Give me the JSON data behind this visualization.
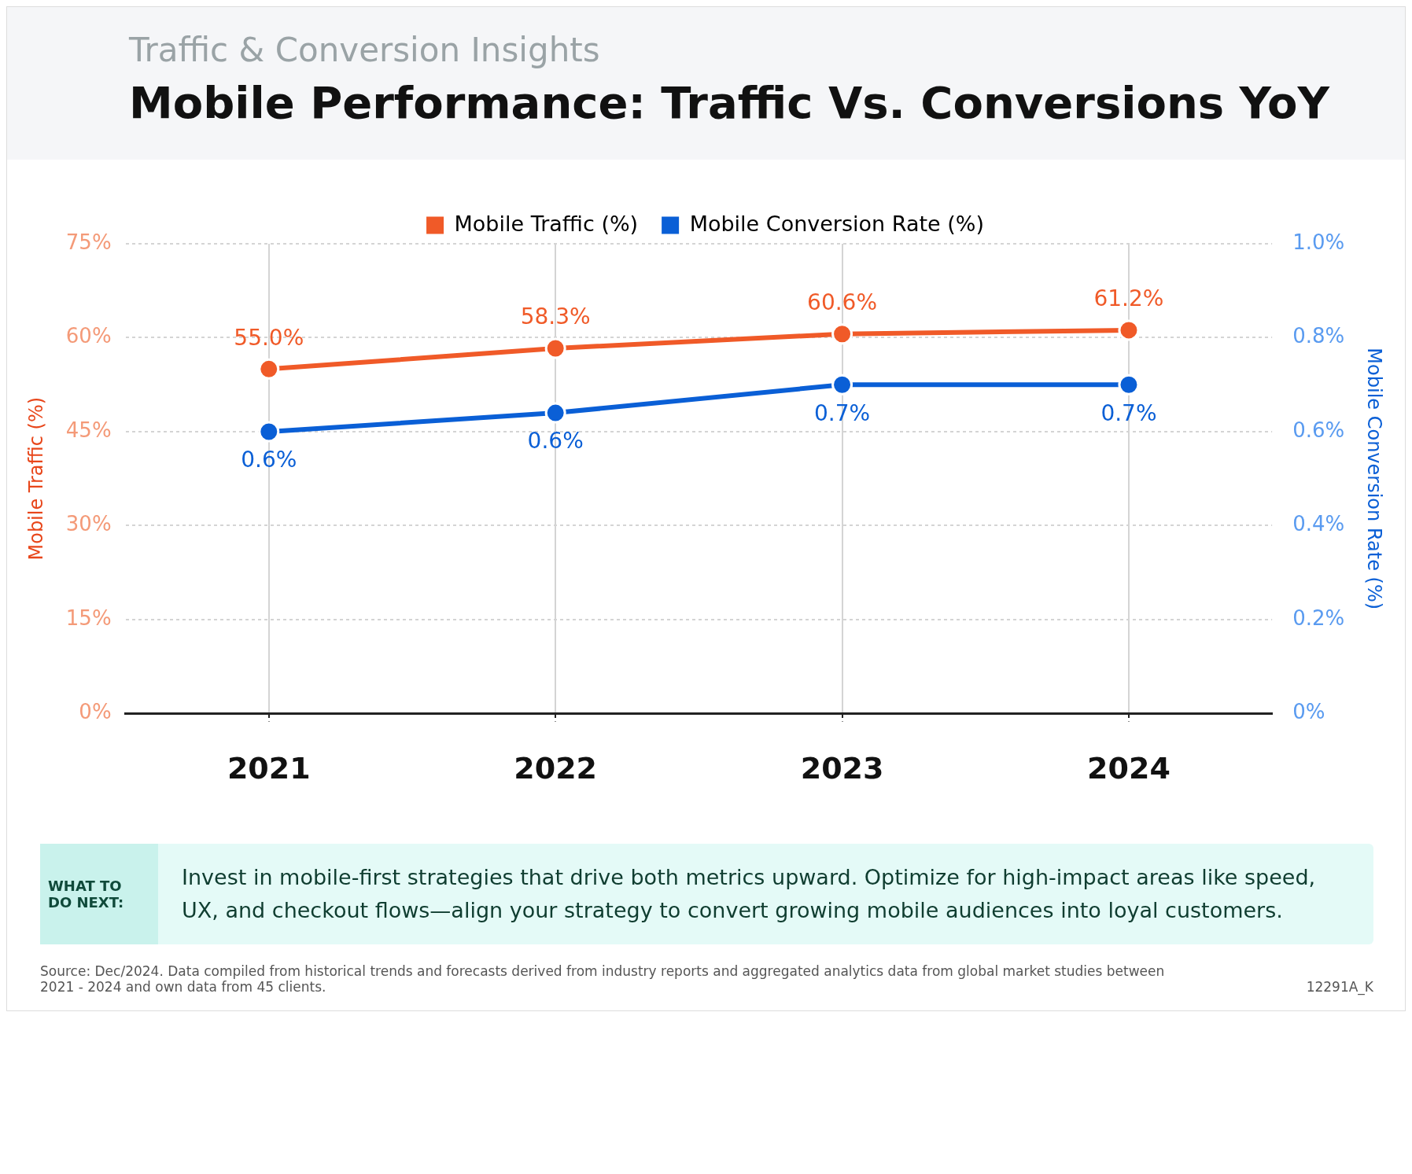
{
  "chart_data": {
    "type": "line",
    "subtitle": "Traffic & Conversion Insights",
    "title": "Mobile Performance: Traffic Vs. Conversions YoY",
    "categories": [
      "2021",
      "2022",
      "2023",
      "2024"
    ],
    "series": [
      {
        "name": "Mobile Traffic (%)",
        "color": "#f05a28",
        "values": [
          55.0,
          58.3,
          60.6,
          61.2
        ],
        "value_labels": [
          "55.0%",
          "58.3%",
          "60.6%",
          "61.2%"
        ]
      },
      {
        "name": "Mobile Conversion Rate (%)",
        "color": "#0a5fd6",
        "axis": "y2",
        "values": [
          0.6,
          0.64,
          0.7,
          0.7
        ],
        "value_labels": [
          "0.6%",
          "0.6%",
          "0.7%",
          "0.7%"
        ]
      }
    ],
    "ylabel": "Mobile Traffic (%)",
    "y2label": "Mobile Conversion Rate (%)",
    "ylim": [
      0,
      75
    ],
    "yticks": [
      {
        "value": 0,
        "label": "0%"
      },
      {
        "value": 15,
        "label": "15%"
      },
      {
        "value": 30,
        "label": "30%"
      },
      {
        "value": 45,
        "label": "45%"
      },
      {
        "value": 60,
        "label": "60%"
      },
      {
        "value": 75,
        "label": "75%"
      }
    ],
    "y2lim": [
      0,
      1.0
    ],
    "y2ticks": [
      {
        "value": 0,
        "label": "0%"
      },
      {
        "value": 0.2,
        "label": "0.2%"
      },
      {
        "value": 0.4,
        "label": "0.4%"
      },
      {
        "value": 0.6,
        "label": "0.6%"
      },
      {
        "value": 0.8,
        "label": "0.8%"
      },
      {
        "value": 1.0,
        "label": "1.0%"
      }
    ],
    "grid": true,
    "legend": "top",
    "marker": "circle",
    "line_style": "solid",
    "annotations": [
      "WHAT TO DO NEXT:",
      "Invest in mobile-first strategies that drive both metrics upward. Optimize for high-impact areas like speed, UX, and checkout flows—align your strategy to convert growing mobile audiences into loyal customers.",
      "Source: Dec/2024. Data compiled from historical trends and forecasts derived from industry reports and aggregated analytics data from global market studies between 2021 - 2024 and own data from 45 clients.",
      "12291A_K"
    ]
  }
}
